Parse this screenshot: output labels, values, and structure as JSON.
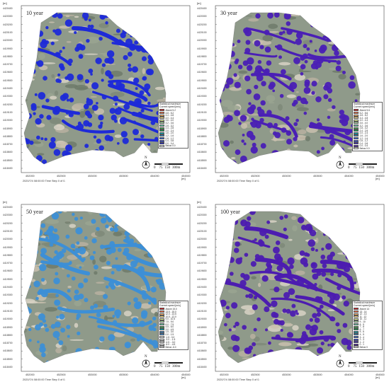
{
  "panels": [
    {
      "title": "10 year",
      "unit_top": "[m]",
      "unit_bottom": "[m]",
      "y_ticks": [
        "4420400",
        "4420300",
        "4420200",
        "4420100",
        "4420000",
        "4419900",
        "4419800",
        "4419700",
        "4419600",
        "4419500",
        "4419400",
        "4419300",
        "4419200",
        "4419100",
        "4419000",
        "4418900",
        "4418800",
        "4418700",
        "4418600",
        "4418500",
        "4418400"
      ],
      "x_ticks": [
        "452000",
        "452500",
        "453000",
        "453500",
        "454000",
        "454500"
      ],
      "time_step": "2020/7/4 08:00:00  Time Step 0 of 0.",
      "legend_title": "Statistical maximum\nCurrent speed [m/s]",
      "legend": [
        {
          "label": "Above  5.2",
          "color": "#d7191c"
        },
        {
          "label": "4.8 - 5.2",
          "color": "#f46d43"
        },
        {
          "label": "4.4 - 4.8",
          "color": "#fdae61"
        },
        {
          "label": "4.0 - 4.4",
          "color": "#fee08b"
        },
        {
          "label": "3.6 - 4.0",
          "color": "#e6f598"
        },
        {
          "label": "3.2 - 3.6",
          "color": "#abdda4"
        },
        {
          "label": "2.8 - 3.2",
          "color": "#66c2a5"
        },
        {
          "label": "2.4 - 2.8",
          "color": "#3ea84c"
        },
        {
          "label": "2.0 - 2.4",
          "color": "#1a9850"
        },
        {
          "label": "1.6 - 2.0",
          "color": "#00a8b5"
        },
        {
          "label": "1.2 - 1.6",
          "color": "#2b83ba"
        },
        {
          "label": "0.8 - 1.2",
          "color": "#3060d0"
        },
        {
          "label": "0.4 - 0.8",
          "color": "#2a3fe0"
        },
        {
          "label": "0.0 - 0.4",
          "color": "#1e20c8"
        },
        {
          "label": "Below  0.0",
          "color": "#ffffff"
        }
      ],
      "fill_color": "#1e2ad8",
      "scale": {
        "n": "N",
        "labels": [
          "0",
          "75",
          "150",
          "300m"
        ]
      }
    },
    {
      "title": "30 year",
      "unit_top": "[m]",
      "unit_bottom": "[m]",
      "y_ticks": [
        "4420400",
        "4420300",
        "4420200",
        "4420100",
        "4420000",
        "4419900",
        "4419800",
        "4419700",
        "4419600",
        "4419500",
        "4419400",
        "4419300",
        "4419200",
        "4419100",
        "4419000",
        "4418900",
        "4418800",
        "4418700",
        "4418600",
        "4418500",
        "4418400"
      ],
      "x_ticks": [
        "452000",
        "452500",
        "453000",
        "453500",
        "454000",
        "454500"
      ],
      "time_step": "2020/7/4 08:00:00  Time Step 0 of 0.",
      "legend_title": "Statistical maximum\nCurrent speed [m/s]",
      "legend": [
        {
          "label": "Above  5.6",
          "color": "#d7191c"
        },
        {
          "label": "5.2 - 5.6",
          "color": "#f46d43"
        },
        {
          "label": "4.8 - 5.2",
          "color": "#fdae61"
        },
        {
          "label": "4.4 - 4.8",
          "color": "#fee08b"
        },
        {
          "label": "4.0 - 4.4",
          "color": "#e6f598"
        },
        {
          "label": "3.6 - 4.0",
          "color": "#abdda4"
        },
        {
          "label": "3.2 - 3.6",
          "color": "#66c2a5"
        },
        {
          "label": "2.8 - 3.2",
          "color": "#3ea84c"
        },
        {
          "label": "2.4 - 2.8",
          "color": "#1a9850"
        },
        {
          "label": "2.0 - 2.4",
          "color": "#00a8b5"
        },
        {
          "label": "1.6 - 2.0",
          "color": "#2b83ba"
        },
        {
          "label": "1.2 - 1.6",
          "color": "#3060d0"
        },
        {
          "label": "0.8 - 1.2",
          "color": "#2a3fe0"
        },
        {
          "label": "0.4 - 0.8",
          "color": "#3a22c0"
        },
        {
          "label": "0.0 - 0.4",
          "color": "#4b1aa8"
        },
        {
          "label": "Below  0.0",
          "color": "#ffffff"
        }
      ],
      "fill_color": "#4a1fb5",
      "scale": {
        "n": "N",
        "labels": [
          "0",
          "75",
          "150",
          "300m"
        ]
      }
    },
    {
      "title": "50 year",
      "unit_top": "[m]",
      "unit_bottom": "[m]",
      "y_ticks": [
        "4420400",
        "4420300",
        "4420200",
        "4420100",
        "4420000",
        "4419900",
        "4419800",
        "4419700",
        "4419600",
        "4419500",
        "4419400",
        "4419300",
        "4419200",
        "4419100",
        "4419000",
        "4418900",
        "4418800",
        "4418700",
        "4418600",
        "4418500",
        "4418400"
      ],
      "x_ticks": [
        "452000",
        "452500",
        "453000",
        "453500",
        "454000",
        "454500"
      ],
      "time_step": "2020/7/4 08:00:00  Time Step 0 of 0.",
      "legend_title": "Statistical maximum\nCurrent speed [m/s]",
      "legend": [
        {
          "label": "Above  15.0",
          "color": "#d7191c"
        },
        {
          "label": "13.5 - 15.0",
          "color": "#f46d43"
        },
        {
          "label": "12.0 - 13.5",
          "color": "#fdae61"
        },
        {
          "label": "10.5 - 12.0",
          "color": "#fee08b"
        },
        {
          "label": "9.0 - 10.5",
          "color": "#e6f598"
        },
        {
          "label": "7.5 - 9.0",
          "color": "#abdda4"
        },
        {
          "label": "6.0 - 7.5",
          "color": "#66c2a5"
        },
        {
          "label": "4.5 - 6.0",
          "color": "#3ea84c"
        },
        {
          "label": "3.0 - 4.5",
          "color": "#00a8b5"
        },
        {
          "label": "1.5 - 3.0",
          "color": "#2f86d0"
        },
        {
          "label": "0.0 - 1.5",
          "color": "#3a8ad8"
        },
        {
          "label": "-1.5 - 0.0",
          "color": "#ffffff"
        },
        {
          "label": "-3.0 - -1.5",
          "color": "#ffffff"
        },
        {
          "label": "-4.5 - -3.0",
          "color": "#ffffff"
        },
        {
          "label": "-6.0 - -4.5",
          "color": "#ffffff"
        },
        {
          "label": "Below  -6.0",
          "color": "#ffffff"
        }
      ],
      "fill_color": "#3d8fd6",
      "scale": {
        "n": "N",
        "labels": [
          "0",
          "75",
          "150",
          "300m"
        ]
      }
    },
    {
      "title": "100 year",
      "unit_top": "[m]",
      "unit_bottom": "[m]",
      "y_ticks": [
        "4420400",
        "4420300",
        "4420200",
        "4420100",
        "4420000",
        "4419900",
        "4419800",
        "4419700",
        "4419600",
        "4419500",
        "4419400",
        "4419300",
        "4419200",
        "4419100",
        "4419000",
        "4418900",
        "4418800",
        "4418700",
        "4418600",
        "4418500",
        "4418400"
      ],
      "x_ticks": [
        "452000",
        "452500",
        "453000",
        "453500",
        "454000",
        "454500"
      ],
      "time_step": "2020/7/4 08:00:00  Time Step 0 of 0.",
      "legend_title": "Statistical maximum\nCurrent speed [m/s]",
      "legend": [
        {
          "label": "Above  14",
          "color": "#d7191c"
        },
        {
          "label": "13 - 14",
          "color": "#f46d43"
        },
        {
          "label": "12 - 13",
          "color": "#fdae61"
        },
        {
          "label": "11 - 12",
          "color": "#fee08b"
        },
        {
          "label": "10 - 11",
          "color": "#e6f598"
        },
        {
          "label": "9 - 10",
          "color": "#abdda4"
        },
        {
          "label": "8 - 9",
          "color": "#66c2a5"
        },
        {
          "label": "7 - 8",
          "color": "#3ea84c"
        },
        {
          "label": "6 - 7",
          "color": "#1a9850"
        },
        {
          "label": "5 - 6",
          "color": "#00a8b5"
        },
        {
          "label": "4 - 5",
          "color": "#2b83ba"
        },
        {
          "label": "3 - 4",
          "color": "#3060d0"
        },
        {
          "label": "2 - 3",
          "color": "#2a3fe0"
        },
        {
          "label": "1 - 2",
          "color": "#3a22c0"
        },
        {
          "label": "0 - 1",
          "color": "#4b1aa8"
        },
        {
          "label": "Below  0",
          "color": "#ffffff"
        }
      ],
      "fill_color": "#4c1cb0",
      "scale": {
        "n": "N",
        "labels": [
          "0",
          "75",
          "150",
          "300m"
        ]
      }
    }
  ]
}
